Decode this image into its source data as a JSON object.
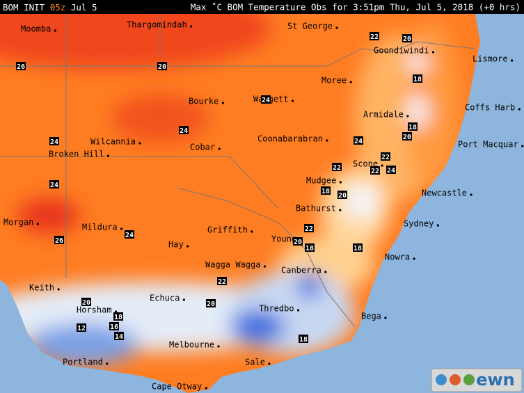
{
  "header": {
    "model": "BOM INIT",
    "init_time": "05z",
    "init_date": "Jul 5",
    "title": "Max ˚C BOM Temperature Obs for 3:51pm Thu, Jul 5, 2018 (+0 hrs)"
  },
  "places": [
    "Moomba",
    "Thargomindah",
    "St George",
    "Goondiwindi",
    "Lismore",
    "Moree",
    "Bourke",
    "Walgett",
    "Armidale",
    "Coffs Harb",
    "Wilcannia",
    "Broken Hill",
    "Cobar",
    "Coonabarabran",
    "Port Macquar",
    "Scone",
    "Mudgee",
    "Newcastle",
    "Morgan",
    "Mildura",
    "Griffith",
    "Bathurst",
    "Sydney",
    "Hay",
    "Young",
    "Wagga Wagga",
    "Nowra",
    "Canberra",
    "Keith",
    "Echuca",
    "Horsham",
    "Thredbo",
    "Bega",
    "Melbourne",
    "Portland",
    "Sale",
    "Cape Otway"
  ],
  "contour_labels": [
    "26",
    "20",
    "22",
    "20",
    "18",
    "24",
    "24",
    "18",
    "20",
    "24",
    "24",
    "22",
    "22",
    "22",
    "24",
    "24",
    "18",
    "20",
    "26",
    "24",
    "22",
    "20",
    "18",
    "18",
    "22",
    "20",
    "20",
    "18",
    "16",
    "14",
    "12",
    "18"
  ],
  "logo": "ewn"
}
